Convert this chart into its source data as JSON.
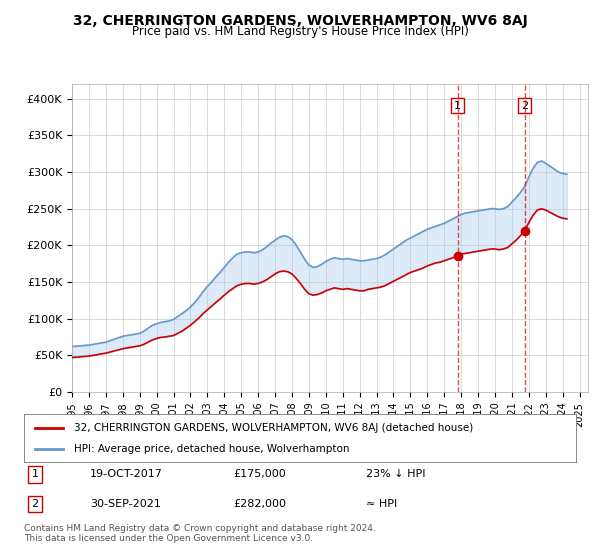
{
  "title": "32, CHERRINGTON GARDENS, WOLVERHAMPTON, WV6 8AJ",
  "subtitle": "Price paid vs. HM Land Registry's House Price Index (HPI)",
  "background_color": "#ffffff",
  "plot_bg_color": "#ffffff",
  "grid_color": "#cccccc",
  "ylabel": "",
  "ylim": [
    0,
    420000
  ],
  "yticks": [
    0,
    50000,
    100000,
    150000,
    200000,
    250000,
    300000,
    350000,
    400000
  ],
  "ytick_labels": [
    "£0",
    "£50K",
    "£100K",
    "£150K",
    "£200K",
    "£250K",
    "£300K",
    "£350K",
    "£400K"
  ],
  "xlim_start": 1995.0,
  "xlim_end": 2025.5,
  "hpi_color": "#6699cc",
  "price_color": "#cc0000",
  "transaction1_date": "19-OCT-2017",
  "transaction1_price": "£175,000",
  "transaction1_note": "23% ↓ HPI",
  "transaction1_year": 2017.8,
  "transaction2_date": "30-SEP-2021",
  "transaction2_price": "£282,000",
  "transaction2_note": "≈ HPI",
  "transaction2_year": 2021.75,
  "legend_label_red": "32, CHERRINGTON GARDENS, WOLVERHAMPTON, WV6 8AJ (detached house)",
  "legend_label_blue": "HPI: Average price, detached house, Wolverhampton",
  "footer": "Contains HM Land Registry data © Crown copyright and database right 2024.\nThis data is licensed under the Open Government Licence v3.0.",
  "hpi_data": {
    "years": [
      1995.0,
      1995.25,
      1995.5,
      1995.75,
      1996.0,
      1996.25,
      1996.5,
      1996.75,
      1997.0,
      1997.25,
      1997.5,
      1997.75,
      1998.0,
      1998.25,
      1998.5,
      1998.75,
      1999.0,
      1999.25,
      1999.5,
      1999.75,
      2000.0,
      2000.25,
      2000.5,
      2000.75,
      2001.0,
      2001.25,
      2001.5,
      2001.75,
      2002.0,
      2002.25,
      2002.5,
      2002.75,
      2003.0,
      2003.25,
      2003.5,
      2003.75,
      2004.0,
      2004.25,
      2004.5,
      2004.75,
      2005.0,
      2005.25,
      2005.5,
      2005.75,
      2006.0,
      2006.25,
      2006.5,
      2006.75,
      2007.0,
      2007.25,
      2007.5,
      2007.75,
      2008.0,
      2008.25,
      2008.5,
      2008.75,
      2009.0,
      2009.25,
      2009.5,
      2009.75,
      2010.0,
      2010.25,
      2010.5,
      2010.75,
      2011.0,
      2011.25,
      2011.5,
      2011.75,
      2012.0,
      2012.25,
      2012.5,
      2012.75,
      2013.0,
      2013.25,
      2013.5,
      2013.75,
      2014.0,
      2014.25,
      2014.5,
      2014.75,
      2015.0,
      2015.25,
      2015.5,
      2015.75,
      2016.0,
      2016.25,
      2016.5,
      2016.75,
      2017.0,
      2017.25,
      2017.5,
      2017.75,
      2018.0,
      2018.25,
      2018.5,
      2018.75,
      2019.0,
      2019.25,
      2019.5,
      2019.75,
      2020.0,
      2020.25,
      2020.5,
      2020.75,
      2021.0,
      2021.25,
      2021.5,
      2021.75,
      2022.0,
      2022.25,
      2022.5,
      2022.75,
      2023.0,
      2023.25,
      2023.5,
      2023.75,
      2024.0,
      2024.25
    ],
    "values": [
      62000,
      62500,
      63000,
      63500,
      64000,
      65000,
      66000,
      67000,
      68000,
      70000,
      72000,
      74000,
      76000,
      77000,
      78000,
      79000,
      80000,
      83000,
      87000,
      91000,
      93000,
      95000,
      96000,
      97000,
      99000,
      103000,
      107000,
      111000,
      116000,
      122000,
      129000,
      137000,
      144000,
      150000,
      157000,
      163000,
      170000,
      177000,
      183000,
      188000,
      190000,
      191000,
      191000,
      190000,
      191000,
      194000,
      198000,
      203000,
      207000,
      211000,
      213000,
      212000,
      208000,
      200000,
      191000,
      181000,
      173000,
      170000,
      171000,
      174000,
      178000,
      181000,
      183000,
      182000,
      181000,
      182000,
      181000,
      180000,
      179000,
      179000,
      180000,
      181000,
      182000,
      184000,
      187000,
      191000,
      195000,
      199000,
      203000,
      207000,
      210000,
      213000,
      216000,
      219000,
      222000,
      224000,
      226000,
      228000,
      230000,
      233000,
      236000,
      239000,
      242000,
      244000,
      245000,
      246000,
      247000,
      248000,
      249000,
      250000,
      250000,
      249000,
      250000,
      253000,
      259000,
      265000,
      272000,
      280000,
      293000,
      305000,
      313000,
      315000,
      312000,
      308000,
      304000,
      300000,
      298000,
      297000
    ]
  },
  "price_data": {
    "years": [
      1995.0,
      1995.25,
      1995.5,
      1995.75,
      1996.0,
      1996.25,
      1996.5,
      1996.75,
      1997.0,
      1997.25,
      1997.5,
      1997.75,
      1998.0,
      1998.25,
      1998.5,
      1998.75,
      1999.0,
      1999.25,
      1999.5,
      1999.75,
      2000.0,
      2000.25,
      2000.5,
      2000.75,
      2001.0,
      2001.25,
      2001.5,
      2001.75,
      2002.0,
      2002.25,
      2002.5,
      2002.75,
      2003.0,
      2003.25,
      2003.5,
      2003.75,
      2004.0,
      2004.25,
      2004.5,
      2004.75,
      2005.0,
      2005.25,
      2005.5,
      2005.75,
      2006.0,
      2006.25,
      2006.5,
      2006.75,
      2007.0,
      2007.25,
      2007.5,
      2007.75,
      2008.0,
      2008.25,
      2008.5,
      2008.75,
      2009.0,
      2009.25,
      2009.5,
      2009.75,
      2010.0,
      2010.25,
      2010.5,
      2010.75,
      2011.0,
      2011.25,
      2011.5,
      2011.75,
      2012.0,
      2012.25,
      2012.5,
      2012.75,
      2013.0,
      2013.25,
      2013.5,
      2013.75,
      2014.0,
      2014.25,
      2014.5,
      2014.75,
      2015.0,
      2015.25,
      2015.5,
      2015.75,
      2016.0,
      2016.25,
      2016.5,
      2016.75,
      2017.0,
      2017.25,
      2017.5,
      2017.75,
      2018.0,
      2018.25,
      2018.5,
      2018.75,
      2019.0,
      2019.25,
      2019.5,
      2019.75,
      2020.0,
      2020.25,
      2020.5,
      2020.75,
      2021.0,
      2021.25,
      2021.5,
      2021.75,
      2022.0,
      2022.25,
      2022.5,
      2022.75,
      2023.0,
      2023.25,
      2023.5,
      2023.75,
      2024.0,
      2024.25
    ],
    "values": [
      47000,
      47500,
      48000,
      48500,
      49000,
      50000,
      51000,
      52000,
      53000,
      54500,
      56000,
      57500,
      59000,
      60000,
      61000,
      62000,
      63000,
      65000,
      68000,
      71000,
      73000,
      74500,
      75000,
      76000,
      77000,
      80000,
      83000,
      87000,
      91000,
      96000,
      101000,
      107000,
      112000,
      117000,
      122000,
      127000,
      132000,
      137000,
      141000,
      145000,
      147000,
      148000,
      148000,
      147000,
      148000,
      150000,
      153000,
      157000,
      161000,
      164000,
      165000,
      164000,
      161000,
      155000,
      148000,
      140000,
      134000,
      132000,
      133000,
      135000,
      138000,
      140000,
      142000,
      141000,
      140000,
      141000,
      140000,
      139000,
      138000,
      138000,
      140000,
      141000,
      142000,
      143000,
      145000,
      148000,
      151000,
      154000,
      157000,
      160000,
      163000,
      165000,
      167000,
      169000,
      172000,
      174000,
      176000,
      177000,
      179000,
      181000,
      183000,
      185000,
      188000,
      189000,
      190000,
      191000,
      192000,
      193000,
      194000,
      195000,
      195000,
      194000,
      195000,
      197000,
      202000,
      207000,
      213000,
      220000,
      231000,
      241000,
      248000,
      250000,
      248000,
      245000,
      242000,
      239000,
      237000,
      236000
    ]
  }
}
